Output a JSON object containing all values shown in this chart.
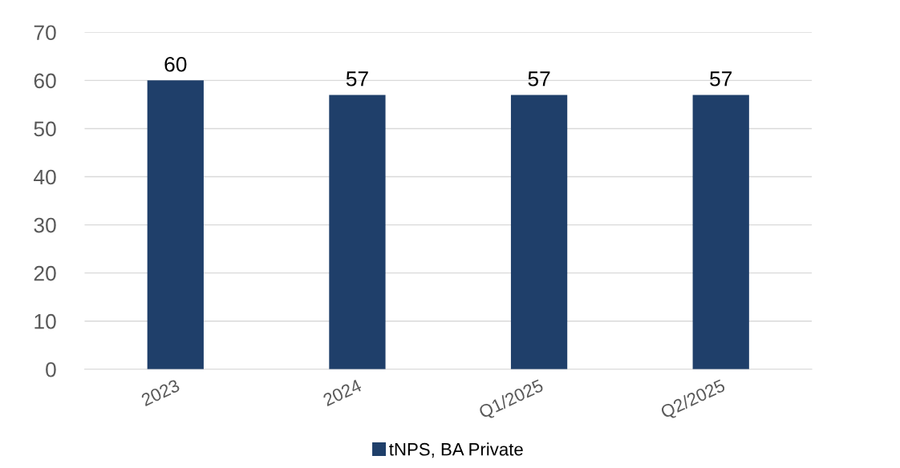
{
  "chart_data": {
    "type": "bar",
    "categories": [
      "2023",
      "2024",
      "Q1/2025",
      "Q2/2025"
    ],
    "series": [
      {
        "name": "tNPS, BA Private",
        "color": "#1f3f6a",
        "values": [
          60,
          57,
          57,
          57
        ]
      }
    ],
    "ylim": [
      0,
      70
    ],
    "yticks": [
      0,
      10,
      20,
      30,
      40,
      50,
      60,
      70
    ],
    "grid": "y",
    "legend": "bottom",
    "data_labels": true
  }
}
